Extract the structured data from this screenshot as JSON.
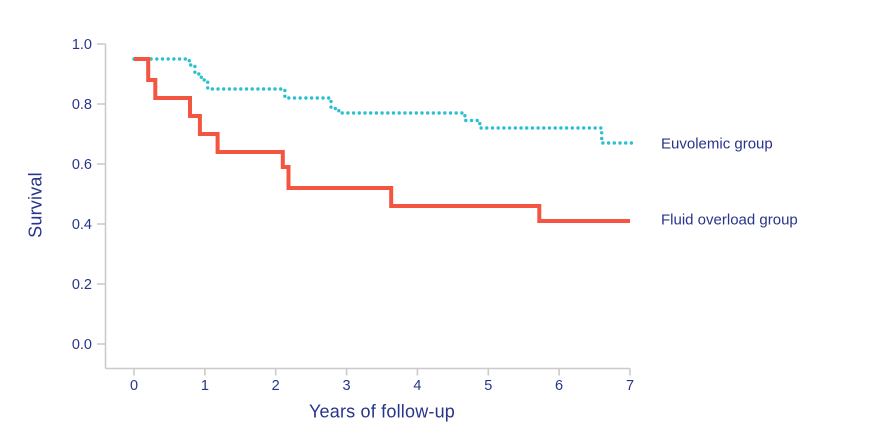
{
  "chart_data": {
    "type": "line",
    "subtype": "kaplan-meier-step",
    "title": "",
    "xlabel": "Years of follow-up",
    "ylabel": "Survival",
    "xlim": [
      0,
      7
    ],
    "ylim": [
      0.0,
      1.0
    ],
    "xticks": [
      "0",
      "1",
      "2",
      "3",
      "4",
      "5",
      "6",
      "7"
    ],
    "yticks": [
      "0.0",
      "0.2",
      "0.4",
      "0.6",
      "0.8",
      "1.0"
    ],
    "grid": false,
    "legend_position": "right of curve ends",
    "series": [
      {
        "name": "Euvolemic group",
        "line_style": "dotted",
        "color": "#2BBFD2",
        "t_end": 7.05,
        "steps": [
          [
            0.0,
            0.95
          ],
          [
            0.78,
            0.93
          ],
          [
            0.86,
            0.9
          ],
          [
            0.95,
            0.88
          ],
          [
            1.04,
            0.85
          ],
          [
            2.13,
            0.82
          ],
          [
            2.78,
            0.785
          ],
          [
            2.89,
            0.77
          ],
          [
            4.67,
            0.745
          ],
          [
            4.88,
            0.72
          ],
          [
            6.6,
            0.67
          ]
        ]
      },
      {
        "name": "Fluid overload group",
        "line_style": "solid",
        "color": "#F45540",
        "t_end": 7.0,
        "steps": [
          [
            0.0,
            0.95
          ],
          [
            0.2,
            0.88
          ],
          [
            0.3,
            0.82
          ],
          [
            0.79,
            0.76
          ],
          [
            0.93,
            0.7
          ],
          [
            1.18,
            0.64
          ],
          [
            2.1,
            0.59
          ],
          [
            2.18,
            0.52
          ],
          [
            3.63,
            0.46
          ],
          [
            5.72,
            0.41
          ]
        ]
      }
    ]
  },
  "colors": {
    "text_navy": "#28348A",
    "axis_gray": "#CBCBCB",
    "background": "#FFFFFF",
    "euvolemic": "#2BBFD2",
    "fluid_overload": "#F45540"
  }
}
